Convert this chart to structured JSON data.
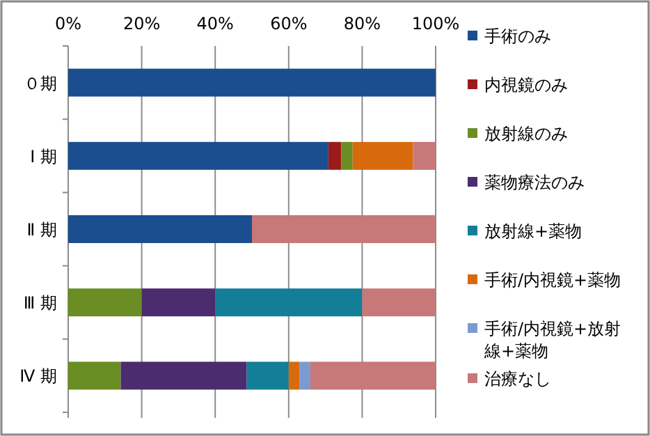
{
  "chart_data": {
    "type": "bar",
    "orientation": "horizontal",
    "stacked": true,
    "categories": [
      "０期",
      "Ⅰ 期",
      "Ⅱ 期",
      "Ⅲ 期",
      "Ⅳ 期"
    ],
    "series": [
      {
        "name": "手術のみ",
        "color": "#1a4e8f",
        "values": [
          100,
          70.8,
          50,
          null,
          null
        ]
      },
      {
        "name": "内視鏡のみ",
        "color": "#9b1b1b",
        "values": [
          null,
          3.5,
          null,
          null,
          null
        ]
      },
      {
        "name": "放射線のみ",
        "color": "#6a8e23",
        "values": [
          null,
          3.1,
          null,
          20,
          14.3
        ]
      },
      {
        "name": "薬物療法のみ",
        "color": "#4b2c6f",
        "values": [
          null,
          null,
          null,
          20,
          34.3
        ]
      },
      {
        "name": "放射線+薬物",
        "color": "#127e98",
        "values": [
          null,
          null,
          null,
          40,
          11.4
        ]
      },
      {
        "name": "手術/内視鏡+薬物",
        "color": "#d86a0d",
        "values": [
          null,
          16.4,
          null,
          null,
          2.9
        ]
      },
      {
        "name": "手術/内視鏡+放射線+薬物",
        "color": "#7b9bd0",
        "values": [
          null,
          null,
          null,
          null,
          3.0
        ]
      },
      {
        "name": "治療なし",
        "color": "#c77878",
        "values": [
          null,
          6.2,
          50,
          20,
          34.1
        ]
      }
    ],
    "xlim": [
      0,
      100
    ],
    "xticks": [
      {
        "value": 0,
        "label": "0%"
      },
      {
        "value": 20,
        "label": "20%"
      },
      {
        "value": 40,
        "label": "40%"
      },
      {
        "value": 60,
        "label": "60%"
      },
      {
        "value": 80,
        "label": "80%"
      },
      {
        "value": 100,
        "label": "100%"
      }
    ],
    "grid": "x",
    "legend": "right"
  }
}
